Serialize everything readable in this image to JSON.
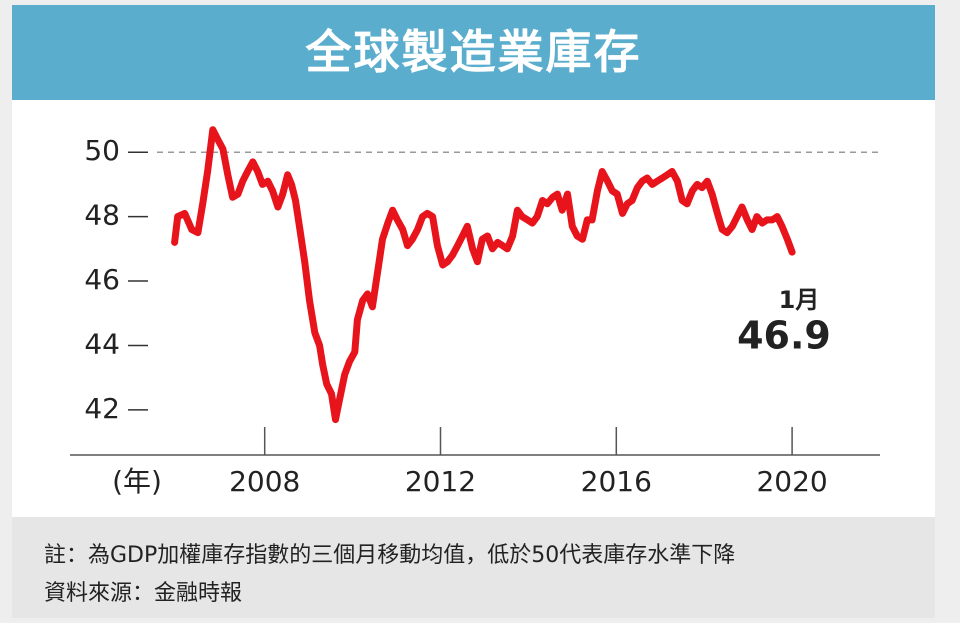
{
  "chart_data": {
    "type": "line",
    "title": "全球製造業庫存",
    "x_label": "(年)",
    "note": "註：為GDP加權庫存指數的三個月移動均值，低於50代表庫存水準下降",
    "source": "資料來源：金融時報",
    "annotation": "1月",
    "reference_line": 50,
    "xlim": [
      2003.57,
      2022
    ],
    "xticks": [
      2008,
      2012,
      2016,
      2020
    ],
    "ylim": [
      40.6,
      51
    ],
    "yticks": [
      42,
      44,
      46,
      48,
      50
    ],
    "series": [
      {
        "color": "#e8141c",
        "x": [
          2005.95,
          2006.02,
          2006.18,
          2006.34,
          2006.48,
          2006.59,
          2006.7,
          2006.82,
          2006.93,
          2007.05,
          2007.16,
          2007.27,
          2007.39,
          2007.5,
          2007.61,
          2007.73,
          2007.84,
          2007.95,
          2008.07,
          2008.18,
          2008.3,
          2008.41,
          2008.52,
          2008.61,
          2008.7,
          2008.8,
          2008.91,
          2009.02,
          2009.14,
          2009.25,
          2009.32,
          2009.41,
          2009.52,
          2009.61,
          2009.7,
          2009.82,
          2009.93,
          2010.05,
          2010.11,
          2010.23,
          2010.34,
          2010.45,
          2010.57,
          2010.68,
          2010.8,
          2010.91,
          2011.02,
          2011.14,
          2011.25,
          2011.36,
          2011.48,
          2011.59,
          2011.7,
          2011.82,
          2011.93,
          2012.05,
          2012.16,
          2012.27,
          2012.39,
          2012.5,
          2012.61,
          2012.73,
          2012.84,
          2012.95,
          2013.07,
          2013.18,
          2013.3,
          2013.41,
          2013.52,
          2013.64,
          2013.75,
          2013.86,
          2013.98,
          2014.09,
          2014.2,
          2014.32,
          2014.43,
          2014.55,
          2014.66,
          2014.77,
          2014.89,
          2015.0,
          2015.11,
          2015.23,
          2015.34,
          2015.45,
          2015.57,
          2015.68,
          2015.8,
          2015.91,
          2016.02,
          2016.14,
          2016.25,
          2016.36,
          2016.48,
          2016.59,
          2016.7,
          2016.82,
          2016.93,
          2017.05,
          2017.16,
          2017.27,
          2017.39,
          2017.5,
          2017.61,
          2017.73,
          2017.84,
          2017.95,
          2018.07,
          2018.18,
          2018.3,
          2018.41,
          2018.52,
          2018.64,
          2018.75,
          2018.86,
          2018.98,
          2019.09,
          2019.2,
          2019.32,
          2019.43,
          2019.55,
          2019.66,
          2019.77,
          2019.89,
          2020.0
        ],
        "values": [
          47.2,
          48.0,
          48.1,
          47.6,
          47.5,
          48.4,
          49.4,
          50.7,
          50.4,
          50.1,
          49.3,
          48.6,
          48.7,
          49.1,
          49.4,
          49.7,
          49.4,
          49.0,
          49.1,
          48.8,
          48.3,
          48.7,
          49.3,
          49.0,
          48.5,
          47.6,
          46.6,
          45.4,
          44.4,
          44.0,
          43.4,
          42.8,
          42.5,
          41.7,
          42.3,
          43.1,
          43.5,
          43.8,
          44.8,
          45.4,
          45.6,
          45.2,
          46.3,
          47.3,
          47.8,
          48.2,
          47.9,
          47.6,
          47.1,
          47.3,
          47.6,
          48.0,
          48.1,
          48.0,
          47.1,
          46.5,
          46.6,
          46.8,
          47.1,
          47.4,
          47.7,
          47.0,
          46.6,
          47.3,
          47.4,
          47.0,
          47.2,
          47.1,
          47.0,
          47.4,
          48.2,
          48.0,
          47.9,
          47.8,
          48.0,
          48.5,
          48.4,
          48.6,
          48.7,
          48.2,
          48.7,
          47.7,
          47.4,
          47.3,
          47.9,
          47.9,
          48.8,
          49.4,
          49.1,
          48.8,
          48.7,
          48.1,
          48.4,
          48.5,
          48.9,
          49.1,
          49.2,
          49.0,
          49.1,
          49.2,
          49.3,
          49.4,
          49.1,
          48.5,
          48.4,
          48.8,
          49.0,
          48.9,
          49.1,
          48.7,
          48.1,
          47.6,
          47.5,
          47.7,
          48.0,
          48.3,
          47.9,
          47.6,
          48.0,
          47.8,
          47.9,
          47.9,
          48.0,
          47.7,
          47.3,
          46.9
        ]
      }
    ]
  }
}
